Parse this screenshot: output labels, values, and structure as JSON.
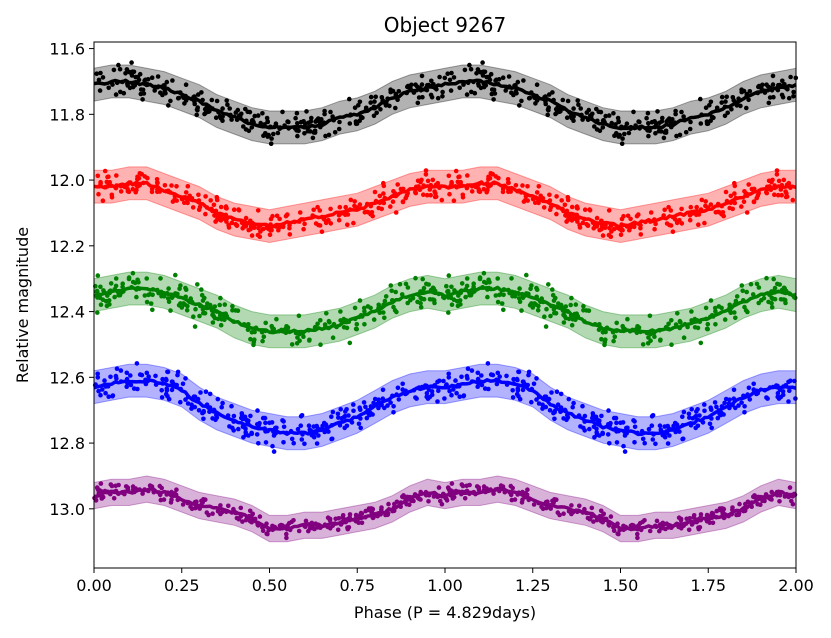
{
  "chart_data": {
    "type": "scatter",
    "title": "Object 9267",
    "xlabel": "Phase (P = 4.829days)",
    "ylabel": "Relative magnitude",
    "xlim": [
      0,
      2
    ],
    "ylim": [
      13.18,
      11.58
    ],
    "y_inverted": true,
    "grid": false,
    "legend": "none",
    "x_ticks": [
      "0.00",
      "0.25",
      "0.50",
      "0.75",
      "1.00",
      "1.25",
      "1.50",
      "1.75",
      "2.00"
    ],
    "x_tick_values": [
      0,
      0.25,
      0.5,
      0.75,
      1.0,
      1.25,
      1.5,
      1.75,
      2.0
    ],
    "y_ticks": [
      "11.6",
      "11.8",
      "12.0",
      "12.2",
      "12.4",
      "12.6",
      "12.8",
      "13.0"
    ],
    "y_tick_values": [
      11.6,
      11.8,
      12.0,
      12.2,
      12.4,
      12.6,
      12.8,
      13.0
    ],
    "series": [
      {
        "color": "#000000",
        "band_halfwidth": 0.05,
        "model_phase": [
          0.0,
          0.05,
          0.1,
          0.15,
          0.2,
          0.25,
          0.3,
          0.35,
          0.4,
          0.45,
          0.5,
          0.55,
          0.6,
          0.65,
          0.7,
          0.75,
          0.8,
          0.85,
          0.9,
          0.95,
          1.0
        ],
        "model_mag": [
          11.71,
          11.7,
          11.7,
          11.71,
          11.72,
          11.74,
          11.76,
          11.79,
          11.81,
          11.83,
          11.84,
          11.84,
          11.84,
          11.83,
          11.81,
          11.8,
          11.78,
          11.75,
          11.73,
          11.72,
          11.71
        ],
        "scatter": 0.035
      },
      {
        "color": "#ff0000",
        "band_halfwidth": 0.05,
        "model_phase": [
          0.0,
          0.05,
          0.1,
          0.15,
          0.2,
          0.25,
          0.3,
          0.35,
          0.4,
          0.45,
          0.5,
          0.55,
          0.6,
          0.65,
          0.7,
          0.75,
          0.8,
          0.85,
          0.9,
          0.95,
          1.0
        ],
        "model_mag": [
          12.02,
          12.02,
          12.01,
          12.01,
          12.03,
          12.05,
          12.07,
          12.1,
          12.12,
          12.13,
          12.14,
          12.13,
          12.12,
          12.11,
          12.1,
          12.09,
          12.07,
          12.05,
          12.03,
          12.02,
          12.02
        ],
        "scatter": 0.035
      },
      {
        "color": "#008000",
        "band_halfwidth": 0.05,
        "model_phase": [
          0.0,
          0.05,
          0.1,
          0.15,
          0.2,
          0.25,
          0.3,
          0.35,
          0.4,
          0.45,
          0.5,
          0.55,
          0.6,
          0.65,
          0.7,
          0.75,
          0.8,
          0.85,
          0.9,
          0.95,
          1.0
        ],
        "model_mag": [
          12.35,
          12.34,
          12.33,
          12.33,
          12.34,
          12.36,
          12.38,
          12.4,
          12.43,
          12.45,
          12.46,
          12.46,
          12.46,
          12.45,
          12.44,
          12.42,
          12.4,
          12.37,
          12.35,
          12.34,
          12.35
        ],
        "scatter": 0.04
      },
      {
        "color": "#0000ff",
        "band_halfwidth": 0.05,
        "model_phase": [
          0.0,
          0.05,
          0.1,
          0.15,
          0.2,
          0.25,
          0.3,
          0.35,
          0.4,
          0.45,
          0.5,
          0.55,
          0.6,
          0.65,
          0.7,
          0.75,
          0.8,
          0.85,
          0.9,
          0.95,
          1.0
        ],
        "model_mag": [
          12.63,
          12.62,
          12.61,
          12.61,
          12.62,
          12.64,
          12.68,
          12.71,
          12.73,
          12.75,
          12.76,
          12.77,
          12.77,
          12.76,
          12.74,
          12.72,
          12.69,
          12.66,
          12.64,
          12.63,
          12.63
        ],
        "scatter": 0.04
      },
      {
        "color": "#800080",
        "band_halfwidth": 0.04,
        "model_phase": [
          0.0,
          0.05,
          0.1,
          0.15,
          0.2,
          0.25,
          0.3,
          0.35,
          0.4,
          0.45,
          0.5,
          0.55,
          0.6,
          0.65,
          0.7,
          0.75,
          0.8,
          0.85,
          0.9,
          0.95,
          1.0
        ],
        "model_mag": [
          12.96,
          12.95,
          12.95,
          12.94,
          12.95,
          12.97,
          12.99,
          13.0,
          13.01,
          13.03,
          13.06,
          13.06,
          13.05,
          13.05,
          13.04,
          13.03,
          13.02,
          13.0,
          12.97,
          12.95,
          12.96
        ],
        "scatter": 0.02
      }
    ]
  }
}
